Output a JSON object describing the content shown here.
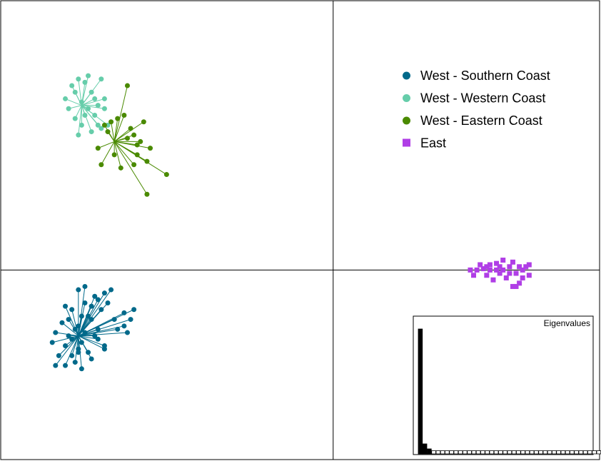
{
  "chart_data": {
    "type": "scatter",
    "title": "",
    "xlabel": "",
    "ylabel": "",
    "xlim": [
      -5.1,
      4.1
    ],
    "ylim": [
      -2.9,
      4.1
    ],
    "grid": false,
    "axis_lines": {
      "x": 0,
      "y": 0
    },
    "legend_position": "top-right",
    "series": [
      {
        "name": "West - Southern Coast",
        "color": "#00698a",
        "marker": "circle",
        "centroid": [
          -3.9,
          -1.0
        ],
        "points": [
          [
            -3.95,
            -0.9
          ],
          [
            -4.05,
            -1.0
          ],
          [
            -3.85,
            -1.1
          ],
          [
            -3.9,
            -0.85
          ],
          [
            -4.1,
            -1.15
          ],
          [
            -3.8,
            -0.95
          ],
          [
            -3.7,
            -0.75
          ],
          [
            -4.15,
            -0.8
          ],
          [
            -3.75,
            -1.25
          ],
          [
            -4.0,
            -1.3
          ],
          [
            -3.6,
            -0.9
          ],
          [
            -3.55,
            -0.6
          ],
          [
            -3.65,
            -0.4
          ],
          [
            -3.8,
            -0.5
          ],
          [
            -4.0,
            -0.6
          ],
          [
            -4.25,
            -0.95
          ],
          [
            -4.2,
            -1.3
          ],
          [
            -3.95,
            -1.4
          ],
          [
            -3.7,
            -1.35
          ],
          [
            -3.5,
            -1.15
          ],
          [
            -3.3,
            -0.9
          ],
          [
            -3.2,
            -0.65
          ],
          [
            -3.15,
            -0.95
          ],
          [
            -3.1,
            -0.75
          ],
          [
            -3.05,
            -0.6
          ],
          [
            -3.4,
            -0.3
          ],
          [
            -3.8,
            -0.25
          ],
          [
            -3.9,
            -0.3
          ],
          [
            -4.25,
            -1.45
          ],
          [
            -4.1,
            -1.45
          ],
          [
            -3.5,
            -1.2
          ],
          [
            -3.85,
            -1.5
          ],
          [
            -4.1,
            -0.55
          ],
          [
            -3.6,
            -0.45
          ],
          [
            -4.0,
            -1.05
          ],
          [
            -3.75,
            -0.7
          ],
          [
            -3.45,
            -0.5
          ],
          [
            -3.35,
            -0.75
          ],
          [
            -3.6,
            -1.05
          ],
          [
            -3.9,
            -1.2
          ],
          [
            -3.2,
            -0.85
          ],
          [
            -3.5,
            -0.35
          ],
          [
            -3.85,
            -0.7
          ],
          [
            -4.3,
            -1.1
          ],
          [
            -3.9,
            -1.25
          ],
          [
            -3.65,
            -1.0
          ],
          [
            -3.7,
            -0.55
          ],
          [
            -4.05,
            -0.75
          ]
        ]
      },
      {
        "name": "West - Western Coast",
        "color": "#66cdaa",
        "marker": "circle",
        "centroid": [
          -3.85,
          2.5
        ],
        "points": [
          [
            -3.95,
            2.7
          ],
          [
            -3.8,
            2.85
          ],
          [
            -3.7,
            2.7
          ],
          [
            -3.85,
            2.55
          ],
          [
            -4.05,
            2.45
          ],
          [
            -3.75,
            2.45
          ],
          [
            -3.65,
            2.35
          ],
          [
            -3.6,
            2.2
          ],
          [
            -3.95,
            2.3
          ],
          [
            -4.1,
            2.6
          ],
          [
            -3.9,
            2.9
          ],
          [
            -3.75,
            2.95
          ],
          [
            -3.55,
            2.9
          ],
          [
            -3.5,
            2.6
          ],
          [
            -3.6,
            2.5
          ],
          [
            -3.8,
            2.35
          ],
          [
            -3.45,
            2.2
          ],
          [
            -3.55,
            2.15
          ],
          [
            -4.0,
            2.8
          ],
          [
            -3.85,
            2.2
          ],
          [
            -3.7,
            2.1
          ],
          [
            -3.9,
            2.05
          ],
          [
            -3.65,
            2.6
          ],
          [
            -3.5,
            2.45
          ]
        ]
      },
      {
        "name": "West - Eastern Coast",
        "color": "#4a8a00",
        "marker": "circle",
        "centroid": [
          -3.35,
          1.95
        ],
        "points": [
          [
            -3.2,
            2.35
          ],
          [
            -3.5,
            2.2
          ],
          [
            -3.1,
            2.15
          ],
          [
            -3.05,
            2.05
          ],
          [
            -2.95,
            1.95
          ],
          [
            -3.0,
            1.75
          ],
          [
            -2.85,
            1.65
          ],
          [
            -2.8,
            1.85
          ],
          [
            -3.35,
            1.75
          ],
          [
            -3.55,
            1.6
          ],
          [
            -3.25,
            1.55
          ],
          [
            -3.15,
            2.0
          ],
          [
            -2.9,
            2.25
          ],
          [
            -3.45,
            2.1
          ],
          [
            -3.6,
            1.85
          ],
          [
            -3.4,
            2.25
          ],
          [
            -2.55,
            1.45
          ],
          [
            -2.85,
            1.15
          ],
          [
            -3.15,
            2.8
          ],
          [
            -3.3,
            2.3
          ],
          [
            -3.05,
            1.6
          ],
          [
            -3.0,
            1.9
          ]
        ]
      },
      {
        "name": "East",
        "color": "#b03ee6",
        "marker": "square",
        "centroid": [
          2.65,
          0.0
        ],
        "points": [
          [
            2.6,
            0.0
          ],
          [
            2.7,
            0.05
          ],
          [
            2.8,
            -0.05
          ],
          [
            2.5,
            0.0
          ],
          [
            2.55,
            0.05
          ],
          [
            2.9,
            0.0
          ],
          [
            2.95,
            0.05
          ],
          [
            2.4,
            0.0
          ],
          [
            2.3,
            0.02
          ],
          [
            2.2,
            0.0
          ],
          [
            2.35,
            -0.08
          ],
          [
            2.45,
            -0.15
          ],
          [
            2.65,
            -0.12
          ],
          [
            2.85,
            -0.2
          ],
          [
            2.75,
            -0.25
          ],
          [
            3.0,
            -0.08
          ],
          [
            3.0,
            0.08
          ],
          [
            2.75,
            0.12
          ],
          [
            2.5,
            0.1
          ],
          [
            2.6,
            0.15
          ],
          [
            2.4,
            0.08
          ],
          [
            2.25,
            0.08
          ],
          [
            2.1,
            0.0
          ],
          [
            2.15,
            -0.08
          ],
          [
            2.7,
            -0.05
          ],
          [
            2.55,
            -0.05
          ],
          [
            2.85,
            0.05
          ],
          [
            2.9,
            -0.12
          ],
          [
            2.8,
            -0.25
          ],
          [
            2.35,
            0.05
          ]
        ]
      }
    ],
    "inset": {
      "title": "Eigenvalues",
      "type": "bar",
      "values": [
        1.0,
        0.08,
        0.04,
        0.025,
        0.025,
        0.025,
        0.025,
        0.025,
        0.025,
        0.025,
        0.025,
        0.025,
        0.025,
        0.025,
        0.025,
        0.025,
        0.025,
        0.025,
        0.025,
        0.025,
        0.025,
        0.025,
        0.025,
        0.025,
        0.025,
        0.025,
        0.025,
        0.025,
        0.025,
        0.025,
        0.025,
        0.025,
        0.025,
        0.025,
        0.025,
        0.025,
        0.025,
        0.025,
        0.025,
        0.025,
        0.025,
        0.025,
        0.025,
        0.025
      ],
      "highlighted_count": 3,
      "highlight_color": "#000000"
    }
  }
}
